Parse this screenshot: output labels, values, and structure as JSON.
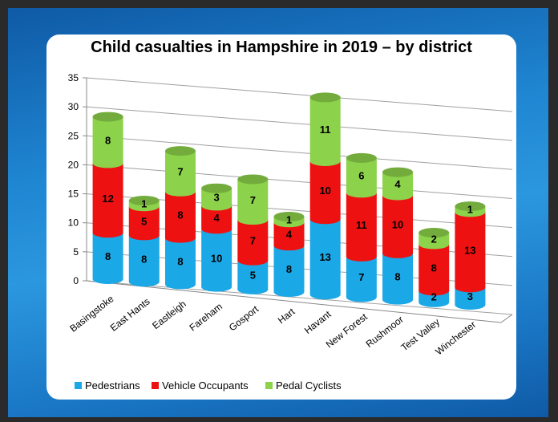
{
  "chart_data": {
    "type": "bar",
    "stacked": true,
    "title": "Child casualties in Hampshire in 2019 – by district",
    "categories": [
      "Basingstoke",
      "East Hants",
      "Eastleigh",
      "Fareham",
      "Gosport",
      "Hart",
      "Havant",
      "New Forest",
      "Rushmoor",
      "Test Valley",
      "Winchester"
    ],
    "series": [
      {
        "name": "Pedestrians",
        "color": "#1ba8e6",
        "values": [
          8,
          8,
          8,
          10,
          5,
          8,
          13,
          7,
          8,
          2,
          3
        ]
      },
      {
        "name": "Vehicle Occupants",
        "color": "#ee1111",
        "values": [
          12,
          5,
          8,
          4,
          7,
          4,
          10,
          11,
          10,
          8,
          13
        ]
      },
      {
        "name": "Pedal Cyclists",
        "color": "#8cd24a",
        "values": [
          8,
          1,
          7,
          3,
          7,
          1,
          11,
          6,
          4,
          2,
          1
        ]
      }
    ],
    "ylim": [
      0,
      35
    ],
    "yticks": [
      "0",
      "5",
      "10",
      "15",
      "20",
      "25",
      "30",
      "35"
    ],
    "grid": true,
    "legend_position": "bottom-left"
  }
}
